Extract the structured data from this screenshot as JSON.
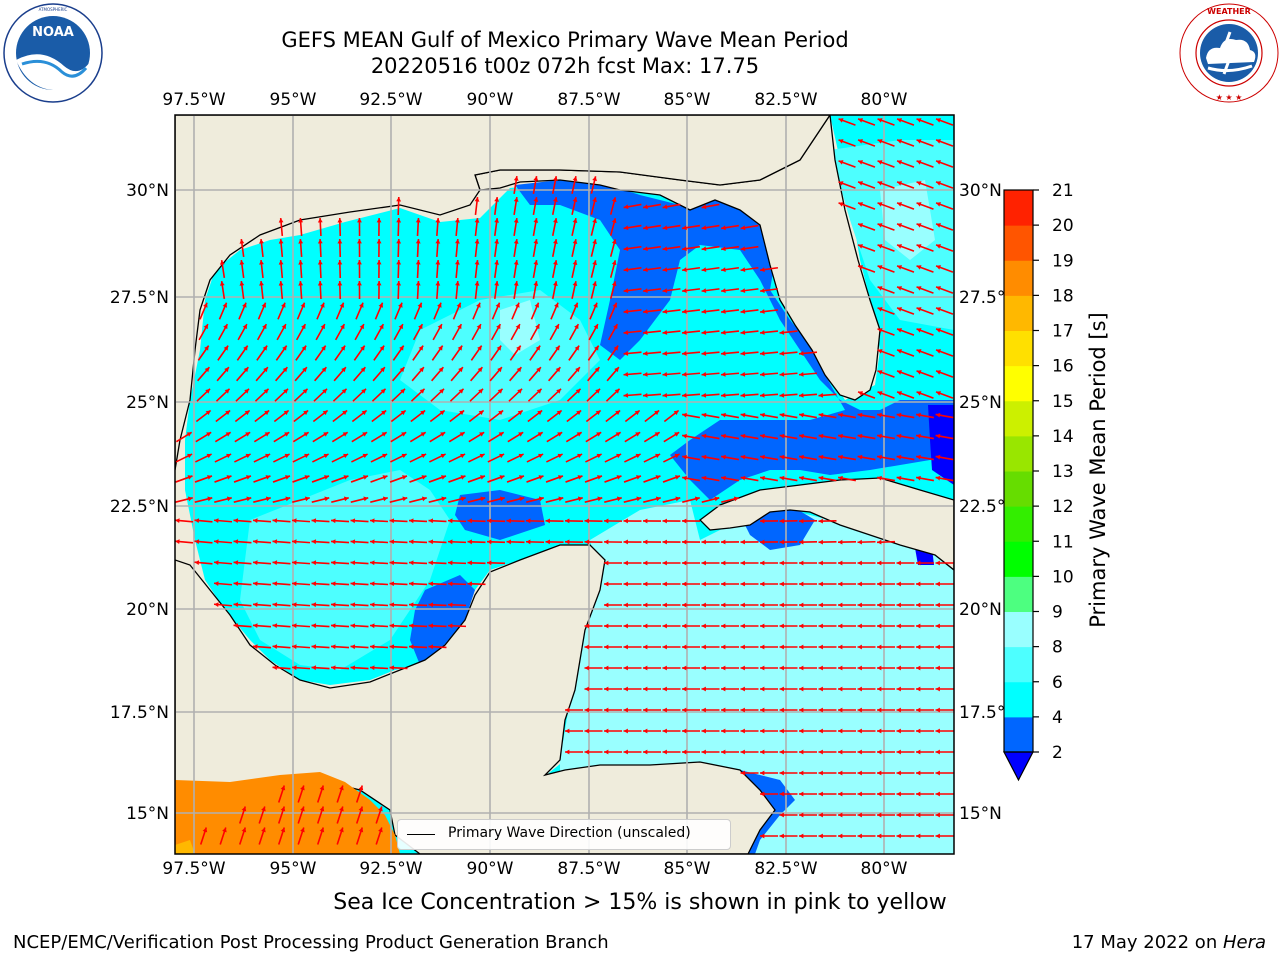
{
  "header": {
    "title_line1": "GEFS MEAN Gulf of Mexico Primary Wave Mean Period",
    "title_line2": "20220516 t00z 072h fcst   Max: 17.75"
  },
  "logos": {
    "left": {
      "name": "noaa-logo",
      "text": "NOAA",
      "ring_text": "NATIONAL OCEANIC AND ATMOSPHERIC ADMINISTRATION · U.S. DEPARTMENT OF COMMERCE"
    },
    "right": {
      "name": "nws-logo",
      "ring_text": "NATIONAL WEATHER SERVICE"
    }
  },
  "map": {
    "lon_labels": [
      "97.5°W",
      "95°W",
      "92.5°W",
      "90°W",
      "87.5°W",
      "85°W",
      "82.5°W",
      "80°W"
    ],
    "lat_labels": [
      "30°N",
      "27.5°N",
      "25°N",
      "22.5°N",
      "20°N",
      "17.5°N",
      "15°N"
    ],
    "right_lat_labels": [
      "30°N",
      "27.5°",
      "25°N",
      "22.5°",
      "20°N",
      "17.5°",
      "15°N"
    ],
    "land_color": "#efecdc",
    "ocean_base_color": "#00ffff",
    "arrow_color": "#ff0000",
    "legend_label": "Primary Wave Direction (unscaled)"
  },
  "colorbar": {
    "label": "Primary Wave Mean Period [s]",
    "ticks": [
      "2",
      "4",
      "6",
      "8",
      "9",
      "10",
      "11",
      "12",
      "13",
      "14",
      "15",
      "16",
      "17",
      "18",
      "19",
      "20",
      "21"
    ],
    "colors": [
      "#0066ff",
      "#00ffff",
      "#4dffff",
      "#99ffff",
      "#4dff80",
      "#00ff00",
      "#33ee00",
      "#66dd00",
      "#99e600",
      "#ccf000",
      "#ffff00",
      "#ffe000",
      "#ffb800",
      "#ff8c00",
      "#ff5500",
      "#ff2200"
    ],
    "extend_color": "#0000ff"
  },
  "subtitle": "Sea Ice Concentration > 15% is shown in pink to yellow",
  "footer": {
    "left": "NCEP/EMC/Verification Post Processing Product Generation Branch",
    "date": "17 May 2022 on ",
    "host": "Hera"
  }
}
